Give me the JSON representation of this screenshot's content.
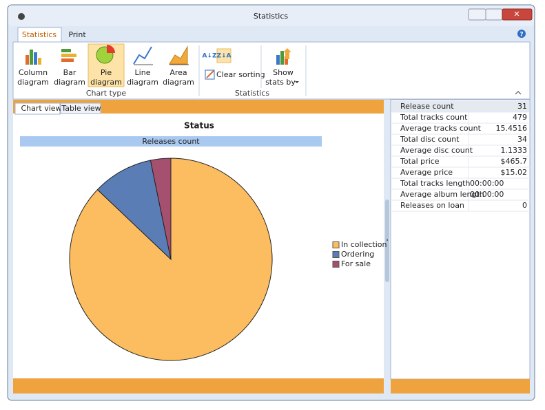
{
  "window": {
    "title": "Statistics"
  },
  "ribbon": {
    "tabs": [
      "Statistics",
      "Print"
    ],
    "chart_type": {
      "label": "Chart type",
      "buttons": [
        {
          "line1": "Column",
          "line2": "diagram"
        },
        {
          "line1": "Bar",
          "line2": "diagram"
        },
        {
          "line1": "Pie",
          "line2": "diagram"
        },
        {
          "line1": "Line",
          "line2": "diagram"
        },
        {
          "line1": "Area",
          "line2": "diagram"
        }
      ]
    },
    "statistics": {
      "label": "Statistics",
      "clear_sorting": "Clear sorting",
      "show_stats": {
        "line1": "Show",
        "line2": "stats by"
      }
    }
  },
  "view_tabs": [
    "Chart view",
    "Table view"
  ],
  "stats": {
    "rows": [
      [
        "Release count",
        "31"
      ],
      [
        "Total tracks count",
        "479"
      ],
      [
        "Average tracks count",
        "15.4516"
      ],
      [
        "Total disc count",
        "34"
      ],
      [
        "Average disc count",
        "1.1333"
      ],
      [
        "Total price",
        "$465.7"
      ],
      [
        "Average price",
        "$15.02"
      ],
      [
        "Total tracks length",
        "00:00:00"
      ],
      [
        "Average album length",
        "00:00:00"
      ],
      [
        "Releases on loan",
        "0"
      ]
    ]
  },
  "chart_data": {
    "type": "pie",
    "title": "Status",
    "subtitle": "Releases count",
    "categories": [
      "In collection",
      "Ordering",
      "For sale"
    ],
    "values": [
      27,
      3,
      1
    ],
    "colors": [
      "#fcbd60",
      "#5b7db6",
      "#a6506f"
    ],
    "legend": "right"
  }
}
